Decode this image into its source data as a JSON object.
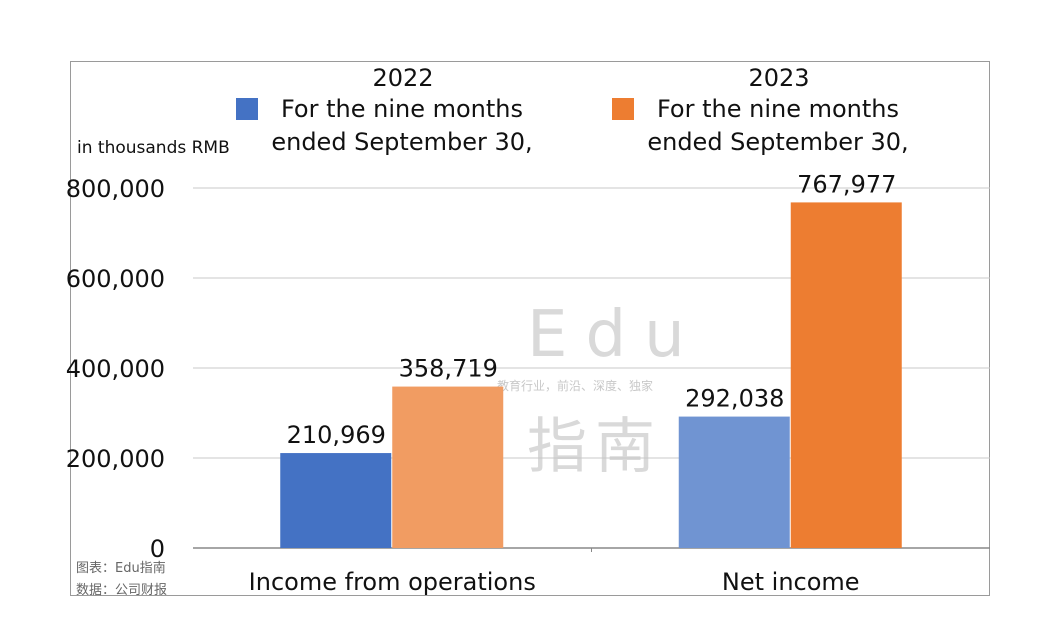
{
  "chart_data": {
    "type": "bar",
    "unit_label": "in thousands RMB",
    "categories": [
      "Income from operations",
      "Net income"
    ],
    "series": [
      {
        "name": "2022",
        "subtitle": "For the nine months ended September 30,",
        "subtitle_lines": [
          "For the nine months",
          "ended September 30,"
        ],
        "values": [
          210969,
          292038
        ],
        "value_labels": [
          "210,969",
          "292,038"
        ],
        "colors": [
          "#4472c4",
          "#7094d2"
        ]
      },
      {
        "name": "2023",
        "subtitle": "For the nine months ended September 30,",
        "subtitle_lines": [
          "For the nine months",
          "ended September 30,"
        ],
        "values": [
          358719,
          767977
        ],
        "value_labels": [
          "358,719",
          "767,977"
        ],
        "colors": [
          "#f19c62",
          "#ed7d31"
        ]
      }
    ],
    "ylim": [
      0,
      800000
    ],
    "yticks": [
      0,
      200000,
      400000,
      600000,
      800000
    ],
    "ytick_labels": [
      "0",
      "200,000",
      "400,000",
      "600,000",
      "800,000"
    ],
    "grid": true,
    "legend_position": "top",
    "legend_colors": [
      "#4472c4",
      "#ed7d31"
    ]
  },
  "watermark": {
    "line1": "Edu",
    "tagline": "教育行业，前沿、深度、独家",
    "line2": "指南"
  },
  "source": {
    "chart_credit": "图表：Edu指南",
    "data_credit": "数据：公司财报"
  }
}
